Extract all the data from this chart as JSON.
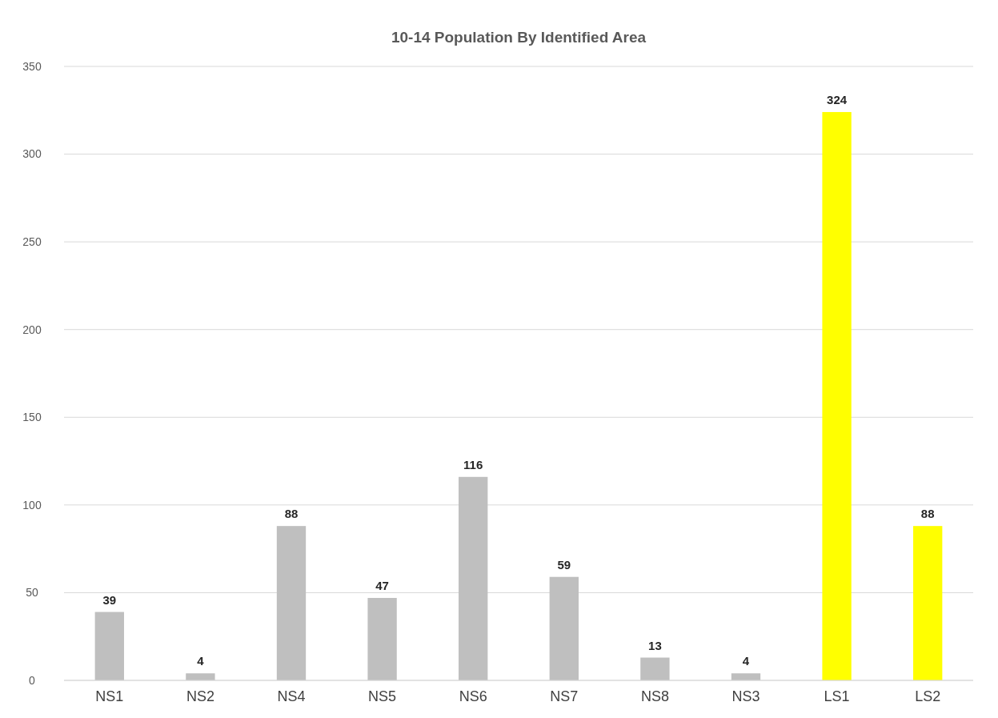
{
  "chart_data": {
    "type": "bar",
    "title": "10-14 Population By Identified Area",
    "categories": [
      "NS1",
      "NS2",
      "NS4",
      "NS5",
      "NS6",
      "NS7",
      "NS8",
      "NS3",
      "LS1",
      "LS2"
    ],
    "values": [
      39,
      4,
      88,
      47,
      116,
      59,
      13,
      4,
      324,
      88
    ],
    "colors": [
      "#bfbfbf",
      "#bfbfbf",
      "#bfbfbf",
      "#bfbfbf",
      "#bfbfbf",
      "#bfbfbf",
      "#bfbfbf",
      "#bfbfbf",
      "#ffff00",
      "#ffff00"
    ],
    "ylim": [
      0,
      350
    ],
    "yticks": [
      0,
      50,
      100,
      150,
      200,
      250,
      300,
      350
    ],
    "grid": "y",
    "data_labels": true
  }
}
